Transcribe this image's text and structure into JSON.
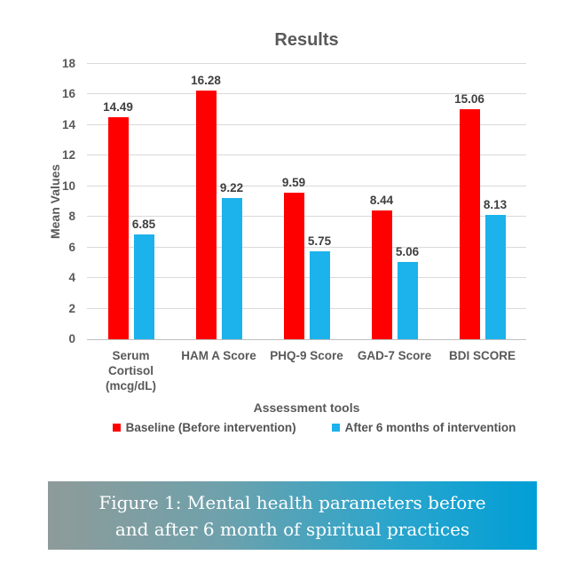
{
  "chart_data": {
    "type": "bar",
    "title": "Results",
    "xlabel": "Assessment tools",
    "ylabel": "Mean Values",
    "ylim": [
      0,
      18
    ],
    "ytick_step": 2,
    "grid": true,
    "legend_position": "bottom",
    "categories": [
      "Serum\nCortisol\n(mcg/dL)",
      "HAM A Score",
      "PHQ-9 Score",
      "GAD-7 Score",
      "BDI SCORE"
    ],
    "series": [
      {
        "name": "Baseline (Before intervention)",
        "color": "#ff0000",
        "values": [
          14.49,
          16.28,
          9.59,
          8.44,
          15.06
        ]
      },
      {
        "name": "After 6 months of intervention",
        "color": "#1cb2ec",
        "values": [
          6.85,
          9.22,
          5.75,
          5.06,
          8.13
        ]
      }
    ]
  },
  "caption": {
    "line1": "Figure 1: Mental health parameters before",
    "line2": "and after 6 month of spiritual practices"
  },
  "colors": {
    "gridline": "#d9d9d9",
    "axis_line": "#bfbfbf",
    "text": "#595959",
    "data_label": "#3f3f3f",
    "caption_gradient_left": "#8e9b99",
    "caption_gradient_right": "#019fd6"
  }
}
